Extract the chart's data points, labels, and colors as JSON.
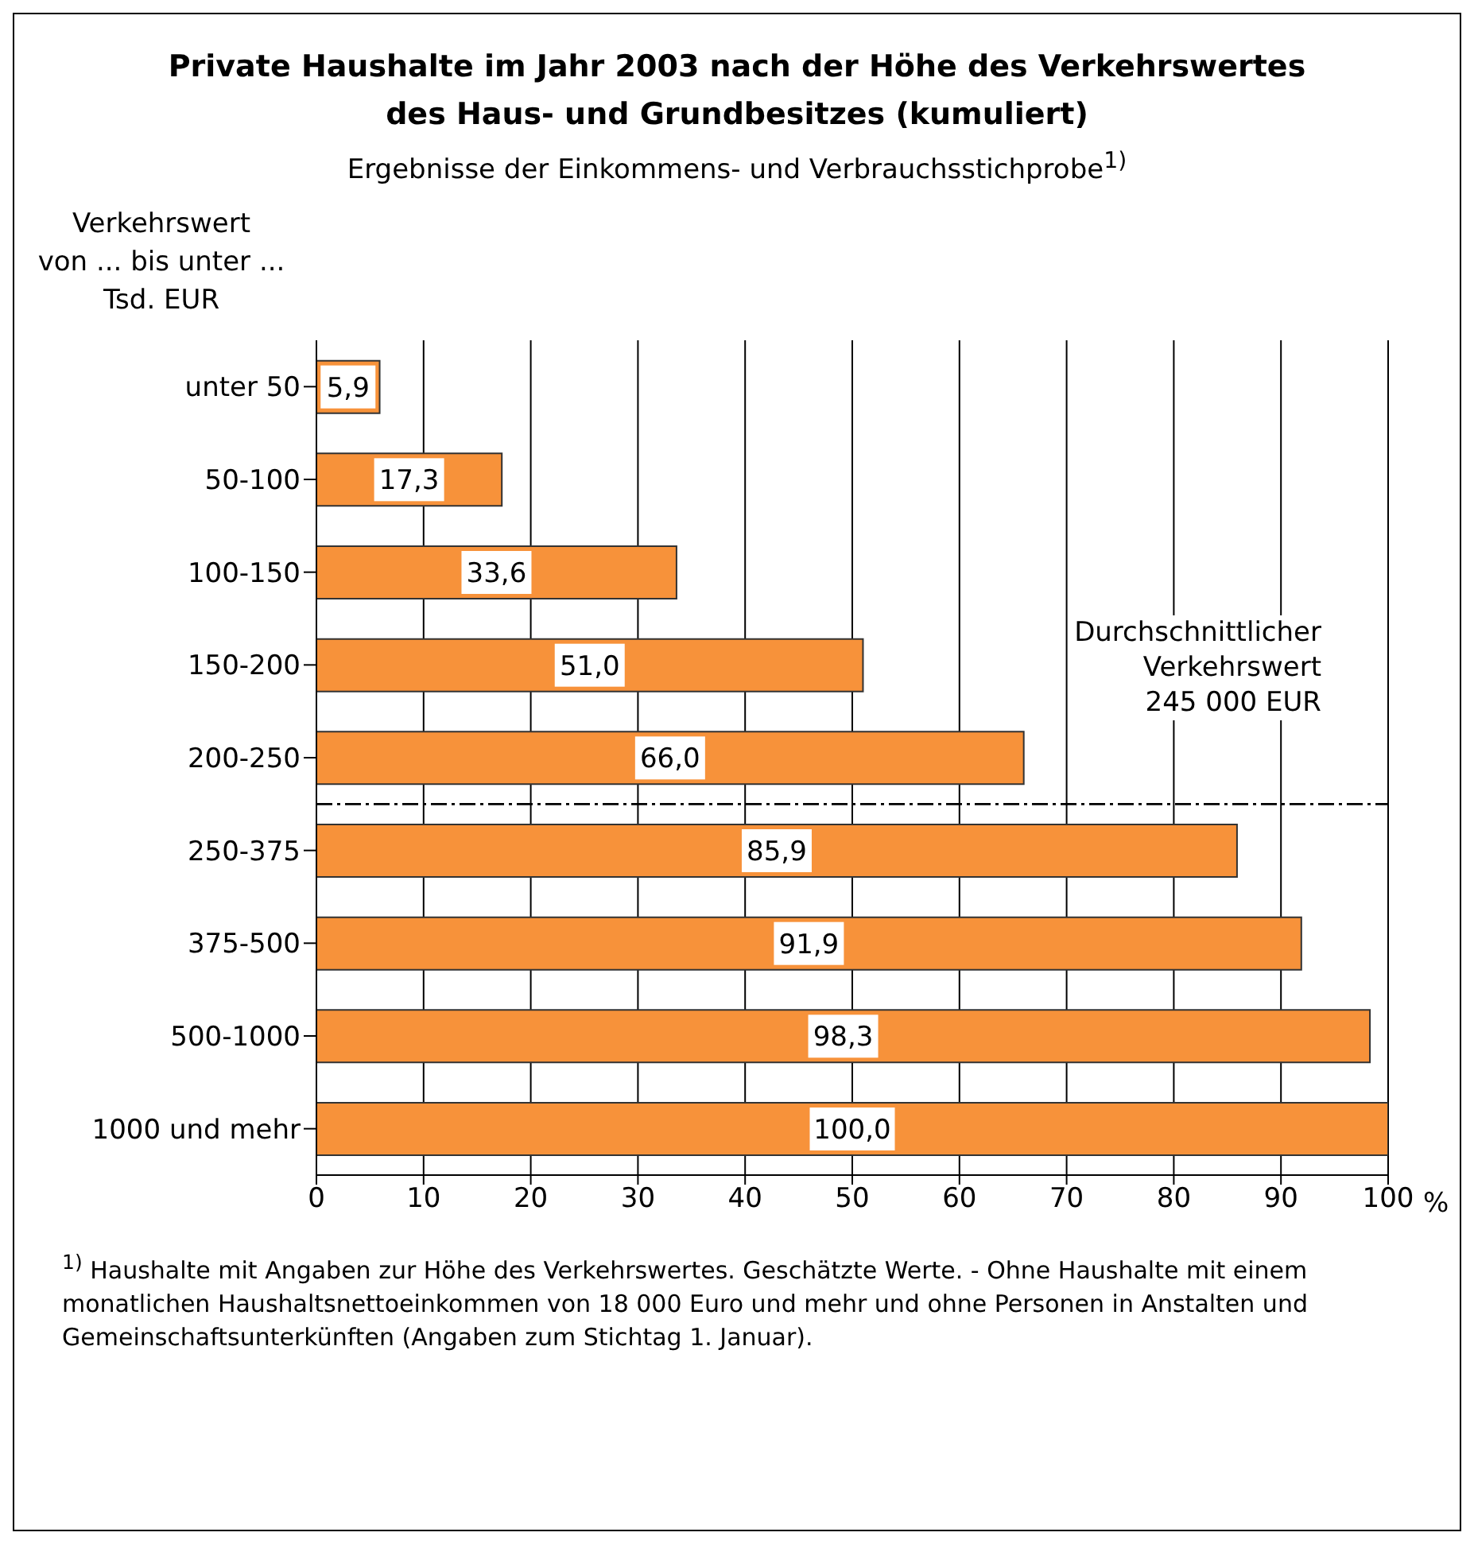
{
  "chart_data": {
    "type": "bar",
    "orientation": "horizontal",
    "title": "Private Haushalte im Jahr 2003 nach der Höhe des Verkehrswertes\ndes Haus- und Grundbesitzes (kumuliert)",
    "subtitle": "Ergebnisse der Einkommens- und Verbrauchsstichprobe$^{1)}$",
    "ylabel": "Verkehrswert\nvon ... bis unter ...\nTsd. EUR",
    "xlabel": "%",
    "categories": [
      "unter 50",
      "50-100",
      "100-150",
      "150-200",
      "200-250",
      "250-375",
      "375-500",
      "500-1000",
      "1000 und mehr"
    ],
    "values": [
      5.9,
      17.3,
      33.6,
      51.0,
      66.0,
      85.9,
      91.9,
      98.3,
      100.0
    ],
    "value_labels": [
      "5,9",
      "17,3",
      "33,6",
      "51,0",
      "66,0",
      "85,9",
      "91,9",
      "98,3",
      "100,0"
    ],
    "color": "#f7923a",
    "xlim": [
      0,
      100
    ],
    "xticks": [
      0,
      10,
      20,
      30,
      40,
      50,
      60,
      70,
      80,
      90,
      100
    ],
    "grid": "x",
    "ref_lines": [
      {
        "axis": "y",
        "value": "200-250",
        "label": "Durchschnittlicher\nVerkehrswert\n245 000 EUR",
        "line_style": "dashed",
        "color": "#000000"
      }
    ],
    "annotations": [
      "$^{1)}$ Haushalte mit Angaben zur Höhe des Verkehrswertes. Geschätzte Werte. - Ohne  Haushalte mit einem monatlichen Haushaltsnettoeinkommen von 18 000 Euro und mehr und ohne Personen in Anstalten und Gemeinschaftsunterkünften (Angaben zum Stichtag 1. Januar)."
    ]
  }
}
